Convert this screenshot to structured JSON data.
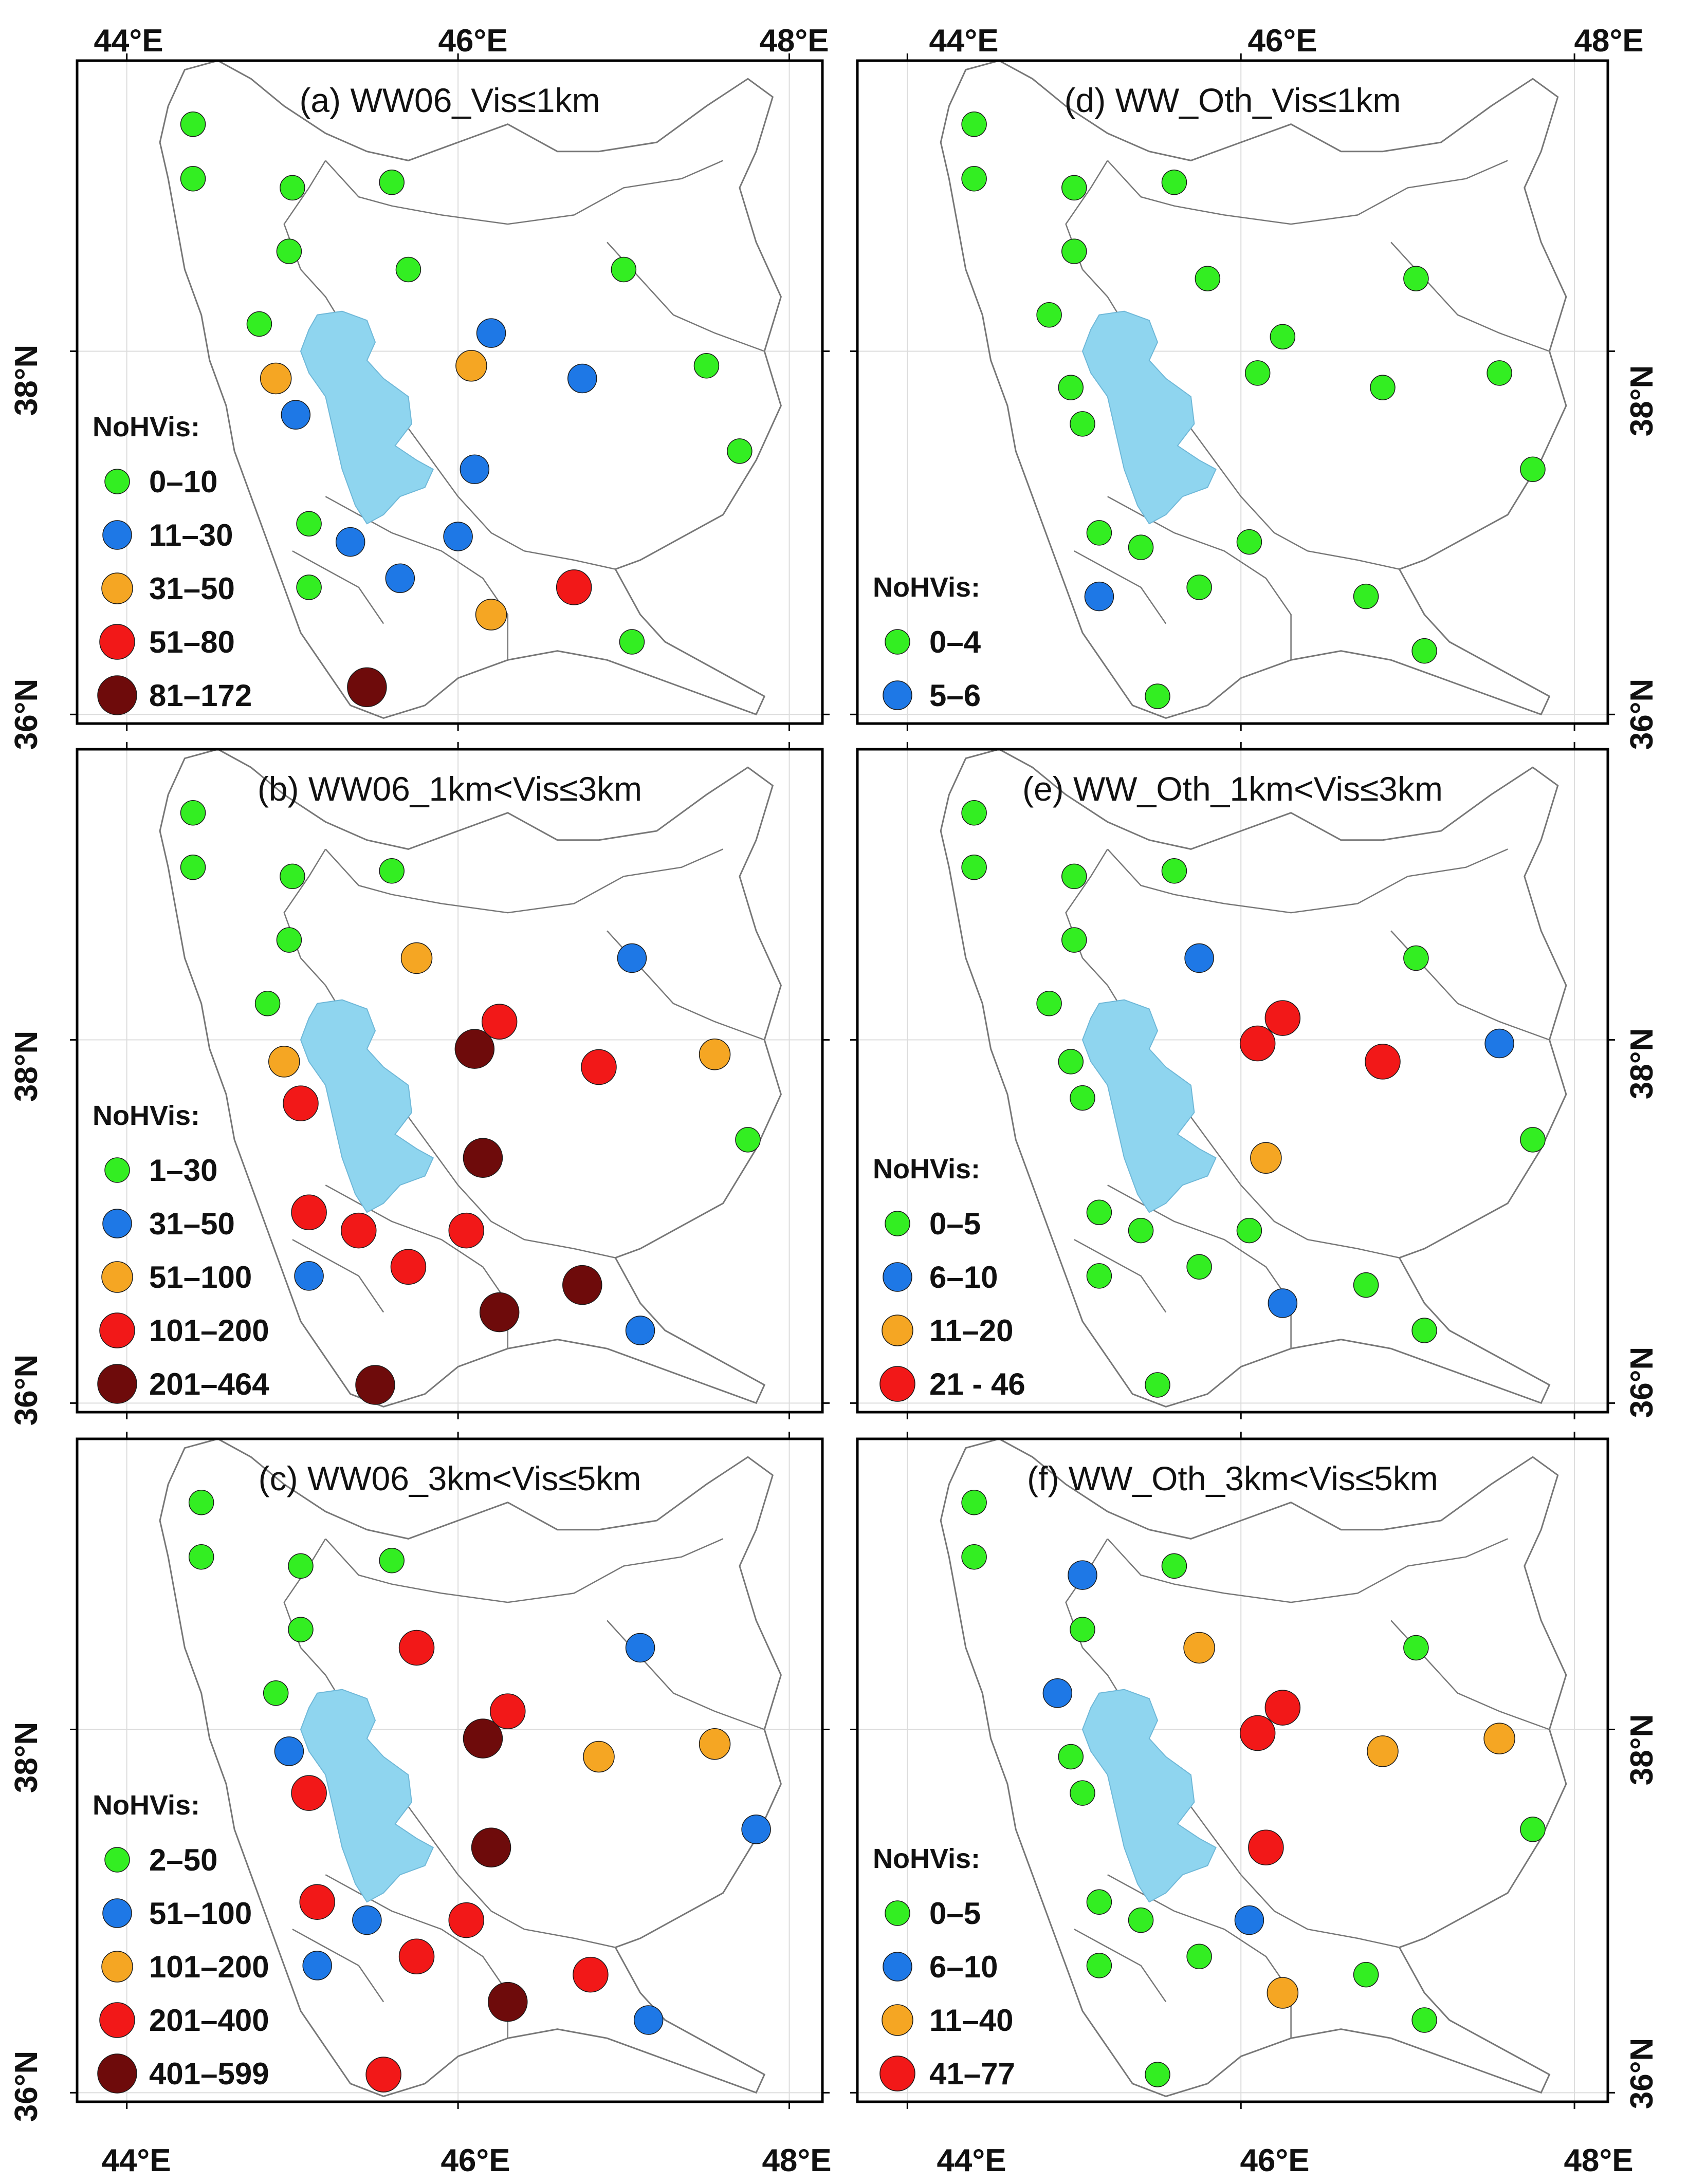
{
  "colors": {
    "green": "#33ee22",
    "blue": "#1e78e6",
    "orange": "#f5a623",
    "red": "#f21818",
    "darkred": "#6e0b0b",
    "lake": "#8fd5ef",
    "border": "#777777"
  },
  "axis_labels": {
    "top": [
      "44°E",
      "46°E",
      "48°E"
    ],
    "bottom": [
      "44°E",
      "46°E",
      "48°E"
    ],
    "lat": [
      "38°N",
      "36°N"
    ]
  },
  "panels": [
    {
      "id": "a",
      "title": "(a) WW06_Vis≤1km",
      "legend_title": "NoHVis:",
      "legend": [
        {
          "label": "0–10",
          "color": "green"
        },
        {
          "label": "11–30",
          "color": "blue"
        },
        {
          "label": "31–50",
          "color": "orange"
        },
        {
          "label": "51–80",
          "color": "red"
        },
        {
          "label": "81–172",
          "color": "darkred"
        }
      ],
      "stations": [
        [
          44.4,
          39.25,
          "green"
        ],
        [
          44.4,
          38.95,
          "green"
        ],
        [
          45.0,
          38.9,
          "green"
        ],
        [
          45.6,
          38.93,
          "green"
        ],
        [
          44.98,
          38.55,
          "green"
        ],
        [
          45.7,
          38.45,
          "green"
        ],
        [
          46.2,
          38.1,
          "blue"
        ],
        [
          47.0,
          38.45,
          "green"
        ],
        [
          44.8,
          38.15,
          "green"
        ],
        [
          44.9,
          37.85,
          "orange"
        ],
        [
          45.02,
          37.65,
          "blue"
        ],
        [
          46.08,
          37.92,
          "orange"
        ],
        [
          46.75,
          37.85,
          "blue"
        ],
        [
          47.5,
          37.92,
          "green"
        ],
        [
          47.7,
          37.45,
          "green"
        ],
        [
          46.1,
          37.35,
          "blue"
        ],
        [
          45.1,
          37.05,
          "green"
        ],
        [
          45.35,
          36.95,
          "blue"
        ],
        [
          46.0,
          36.98,
          "blue"
        ],
        [
          45.65,
          36.75,
          "blue"
        ],
        [
          45.1,
          36.7,
          "green"
        ],
        [
          46.2,
          36.55,
          "orange"
        ],
        [
          46.7,
          36.7,
          "red"
        ],
        [
          47.05,
          36.4,
          "green"
        ],
        [
          45.45,
          36.15,
          "darkred"
        ]
      ]
    },
    {
      "id": "b",
      "title": "(b) WW06_1km<Vis≤3km",
      "legend_title": "NoHVis:",
      "legend": [
        {
          "label": "1–30",
          "color": "green"
        },
        {
          "label": "31–50",
          "color": "blue"
        },
        {
          "label": "51–100",
          "color": "orange"
        },
        {
          "label": "101–200",
          "color": "red"
        },
        {
          "label": "201–464",
          "color": "darkred"
        }
      ],
      "stations": [
        [
          44.4,
          39.25,
          "green"
        ],
        [
          44.4,
          38.95,
          "green"
        ],
        [
          45.0,
          38.9,
          "green"
        ],
        [
          45.6,
          38.93,
          "green"
        ],
        [
          44.98,
          38.55,
          "green"
        ],
        [
          45.75,
          38.45,
          "orange"
        ],
        [
          47.05,
          38.45,
          "blue"
        ],
        [
          44.85,
          38.2,
          "green"
        ],
        [
          46.25,
          38.1,
          "red"
        ],
        [
          46.1,
          37.95,
          "darkred"
        ],
        [
          44.95,
          37.88,
          "orange"
        ],
        [
          46.85,
          37.85,
          "red"
        ],
        [
          47.55,
          37.92,
          "orange"
        ],
        [
          45.05,
          37.65,
          "red"
        ],
        [
          47.75,
          37.45,
          "green"
        ],
        [
          46.15,
          37.35,
          "darkred"
        ],
        [
          45.1,
          37.05,
          "red"
        ],
        [
          45.4,
          36.95,
          "red"
        ],
        [
          46.05,
          36.95,
          "red"
        ],
        [
          45.7,
          36.75,
          "red"
        ],
        [
          45.1,
          36.7,
          "blue"
        ],
        [
          46.25,
          36.5,
          "darkred"
        ],
        [
          46.75,
          36.65,
          "darkred"
        ],
        [
          47.1,
          36.4,
          "blue"
        ],
        [
          45.5,
          36.1,
          "darkred"
        ]
      ]
    },
    {
      "id": "c",
      "title": "(c) WW06_3km<Vis≤5km",
      "legend_title": "NoHVis:",
      "legend": [
        {
          "label": "2–50",
          "color": "green"
        },
        {
          "label": "51–100",
          "color": "blue"
        },
        {
          "label": "101–200",
          "color": "orange"
        },
        {
          "label": "201–400",
          "color": "red"
        },
        {
          "label": "401–599",
          "color": "darkred"
        }
      ],
      "stations": [
        [
          44.45,
          39.25,
          "green"
        ],
        [
          44.45,
          38.95,
          "green"
        ],
        [
          45.05,
          38.9,
          "green"
        ],
        [
          45.6,
          38.93,
          "green"
        ],
        [
          45.05,
          38.55,
          "green"
        ],
        [
          45.75,
          38.45,
          "red"
        ],
        [
          47.1,
          38.45,
          "blue"
        ],
        [
          44.9,
          38.2,
          "green"
        ],
        [
          46.3,
          38.1,
          "red"
        ],
        [
          46.15,
          37.95,
          "darkred"
        ],
        [
          44.98,
          37.88,
          "blue"
        ],
        [
          46.85,
          37.85,
          "orange"
        ],
        [
          47.55,
          37.92,
          "orange"
        ],
        [
          45.1,
          37.65,
          "red"
        ],
        [
          47.8,
          37.45,
          "blue"
        ],
        [
          46.2,
          37.35,
          "darkred"
        ],
        [
          45.15,
          37.05,
          "red"
        ],
        [
          45.45,
          36.95,
          "blue"
        ],
        [
          46.05,
          36.95,
          "red"
        ],
        [
          45.75,
          36.75,
          "red"
        ],
        [
          45.15,
          36.7,
          "blue"
        ],
        [
          46.3,
          36.5,
          "darkred"
        ],
        [
          46.8,
          36.65,
          "red"
        ],
        [
          47.15,
          36.4,
          "blue"
        ],
        [
          45.55,
          36.1,
          "red"
        ]
      ]
    },
    {
      "id": "d",
      "title": "(d) WW_Oth_Vis≤1km",
      "legend_title": "NoHVis:",
      "legend": [
        {
          "label": "0–4",
          "color": "green"
        },
        {
          "label": "5–6",
          "color": "blue"
        }
      ],
      "stations": [
        [
          44.4,
          39.25,
          "green"
        ],
        [
          44.4,
          38.95,
          "green"
        ],
        [
          45.0,
          38.9,
          "green"
        ],
        [
          45.6,
          38.93,
          "green"
        ],
        [
          45.0,
          38.55,
          "green"
        ],
        [
          45.8,
          38.4,
          "green"
        ],
        [
          47.05,
          38.4,
          "green"
        ],
        [
          44.85,
          38.2,
          "green"
        ],
        [
          46.25,
          38.08,
          "green"
        ],
        [
          46.1,
          37.88,
          "green"
        ],
        [
          44.98,
          37.8,
          "green"
        ],
        [
          46.85,
          37.8,
          "green"
        ],
        [
          47.55,
          37.88,
          "green"
        ],
        [
          45.05,
          37.6,
          "green"
        ],
        [
          47.75,
          37.35,
          "green"
        ],
        [
          45.15,
          37.0,
          "green"
        ],
        [
          45.4,
          36.92,
          "green"
        ],
        [
          46.05,
          36.95,
          "green"
        ],
        [
          45.75,
          36.7,
          "green"
        ],
        [
          45.15,
          36.65,
          "blue"
        ],
        [
          46.75,
          36.65,
          "green"
        ],
        [
          47.1,
          36.35,
          "green"
        ],
        [
          45.5,
          36.1,
          "green"
        ]
      ]
    },
    {
      "id": "e",
      "title": "(e) WW_Oth_1km<Vis≤3km",
      "legend_title": "NoHVis:",
      "legend": [
        {
          "label": "0–5",
          "color": "green"
        },
        {
          "label": "6–10",
          "color": "blue"
        },
        {
          "label": "11–20",
          "color": "orange"
        },
        {
          "label": "21 - 46",
          "color": "red"
        }
      ],
      "stations": [
        [
          44.4,
          39.25,
          "green"
        ],
        [
          44.4,
          38.95,
          "green"
        ],
        [
          45.0,
          38.9,
          "green"
        ],
        [
          45.6,
          38.93,
          "green"
        ],
        [
          45.0,
          38.55,
          "green"
        ],
        [
          45.75,
          38.45,
          "blue"
        ],
        [
          47.05,
          38.45,
          "green"
        ],
        [
          44.85,
          38.2,
          "green"
        ],
        [
          46.25,
          38.12,
          "red"
        ],
        [
          46.1,
          37.98,
          "red"
        ],
        [
          44.98,
          37.88,
          "green"
        ],
        [
          46.85,
          37.88,
          "red"
        ],
        [
          47.55,
          37.98,
          "blue"
        ],
        [
          45.05,
          37.68,
          "green"
        ],
        [
          47.75,
          37.45,
          "green"
        ],
        [
          46.15,
          37.35,
          "orange"
        ],
        [
          45.15,
          37.05,
          "green"
        ],
        [
          45.4,
          36.95,
          "green"
        ],
        [
          46.05,
          36.95,
          "green"
        ],
        [
          45.75,
          36.75,
          "green"
        ],
        [
          45.15,
          36.7,
          "green"
        ],
        [
          46.25,
          36.55,
          "blue"
        ],
        [
          46.75,
          36.65,
          "green"
        ],
        [
          47.1,
          36.4,
          "green"
        ],
        [
          45.5,
          36.1,
          "green"
        ]
      ]
    },
    {
      "id": "f",
      "title": "(f) WW_Oth_3km<Vis≤5km",
      "legend_title": "NoHVis:",
      "legend": [
        {
          "label": "0–5",
          "color": "green"
        },
        {
          "label": "6–10",
          "color": "blue"
        },
        {
          "label": "11–40",
          "color": "orange"
        },
        {
          "label": "41–77",
          "color": "red"
        }
      ],
      "stations": [
        [
          44.4,
          39.25,
          "green"
        ],
        [
          44.4,
          38.95,
          "green"
        ],
        [
          45.05,
          38.85,
          "blue"
        ],
        [
          45.6,
          38.9,
          "green"
        ],
        [
          45.05,
          38.55,
          "green"
        ],
        [
          45.75,
          38.45,
          "orange"
        ],
        [
          47.05,
          38.45,
          "green"
        ],
        [
          44.9,
          38.2,
          "blue"
        ],
        [
          46.25,
          38.12,
          "red"
        ],
        [
          46.1,
          37.98,
          "red"
        ],
        [
          44.98,
          37.85,
          "green"
        ],
        [
          46.85,
          37.88,
          "orange"
        ],
        [
          47.55,
          37.95,
          "orange"
        ],
        [
          45.05,
          37.65,
          "green"
        ],
        [
          47.75,
          37.45,
          "green"
        ],
        [
          46.15,
          37.35,
          "red"
        ],
        [
          45.15,
          37.05,
          "green"
        ],
        [
          45.4,
          36.95,
          "green"
        ],
        [
          46.05,
          36.95,
          "blue"
        ],
        [
          45.75,
          36.75,
          "green"
        ],
        [
          45.15,
          36.7,
          "green"
        ],
        [
          46.25,
          36.55,
          "orange"
        ],
        [
          46.75,
          36.65,
          "green"
        ],
        [
          47.1,
          36.4,
          "green"
        ],
        [
          45.5,
          36.1,
          "green"
        ]
      ]
    }
  ]
}
